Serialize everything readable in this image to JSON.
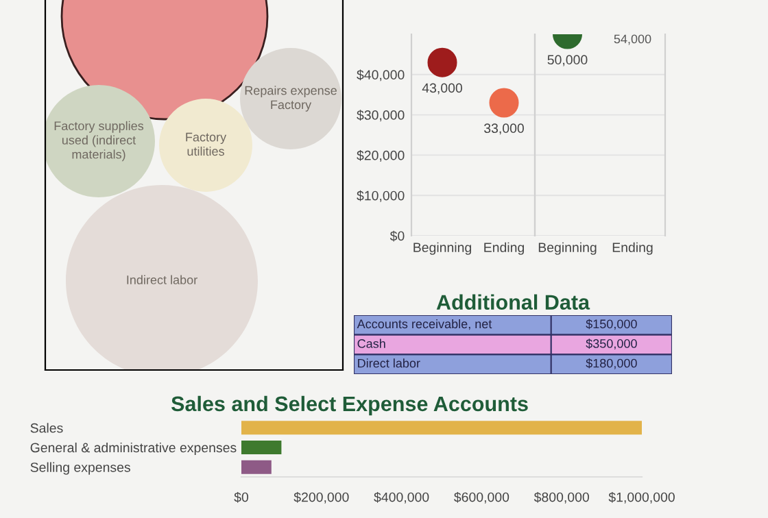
{
  "chart_data": [
    {
      "type": "other",
      "annotations": [
        "Repairs expense\nFactory",
        "Factory supplies\nused (indirect\nmaterials)",
        "Factory\nutilities",
        "Indirect labor"
      ],
      "colors": [
        "#e8908f",
        "#dcd8d3",
        "#cfd6c2",
        "#f1ead0",
        "#e4dcd8"
      ]
    },
    {
      "type": "scatter",
      "categories": [
        "Beginning",
        "Ending"
      ],
      "values": [
        43000,
        33000
      ],
      "colors": [
        "#9e1c1c",
        "#ec6a4a"
      ],
      "value_labels": [
        "43,000",
        "33,000"
      ],
      "ylim": [
        0,
        50000
      ],
      "yticks": [
        {
          "value": 0,
          "label": "$0"
        },
        {
          "value": 10000,
          "label": "$10,000"
        },
        {
          "value": 20000,
          "label": "$20,000"
        },
        {
          "value": 30000,
          "label": "$30,000"
        },
        {
          "value": 40000,
          "label": "$40,000"
        }
      ],
      "grid": "y"
    },
    {
      "type": "scatter",
      "categories": [
        "Beginning",
        "Ending"
      ],
      "values": [
        50000,
        null
      ],
      "colors": [
        "#2e6b2e",
        "#2e6b2e"
      ],
      "value_labels": [
        "50,000",
        null
      ],
      "annotations": [
        "54,000"
      ],
      "ylim": [
        0,
        50000
      ],
      "yticks": [
        0,
        10000,
        20000,
        30000,
        40000
      ],
      "tick_labels": "x",
      "grid": "y"
    },
    {
      "type": "other",
      "title": "Additional Data",
      "annotations": [
        "Accounts receivable, net",
        "$150,000",
        "Cash",
        "$350,000",
        "Direct labor",
        "$180,000"
      ],
      "colors": [
        "#8ea0dc",
        "#e9a6e0",
        "#8ea0dc"
      ]
    },
    {
      "type": "bar",
      "orientation": "horizontal",
      "title": "Sales and Select Expense Accounts",
      "categories": [
        "Sales",
        "General & administrative expenses",
        "Selling expenses"
      ],
      "values": [
        1000000,
        100000,
        75000
      ],
      "colors": [
        "#e2b34a",
        "#3e7a2e",
        "#8e5a86"
      ],
      "xlim": [
        0,
        1000000
      ],
      "xticks": [
        {
          "value": 0,
          "label": "$0"
        },
        {
          "value": 200000,
          "label": "$200,000"
        },
        {
          "value": 400000,
          "label": "$400,000"
        },
        {
          "value": 600000,
          "label": "$600,000"
        },
        {
          "value": 800000,
          "label": "$800,000"
        },
        {
          "value": 1000000,
          "label": "$1,000,000"
        }
      ]
    }
  ]
}
